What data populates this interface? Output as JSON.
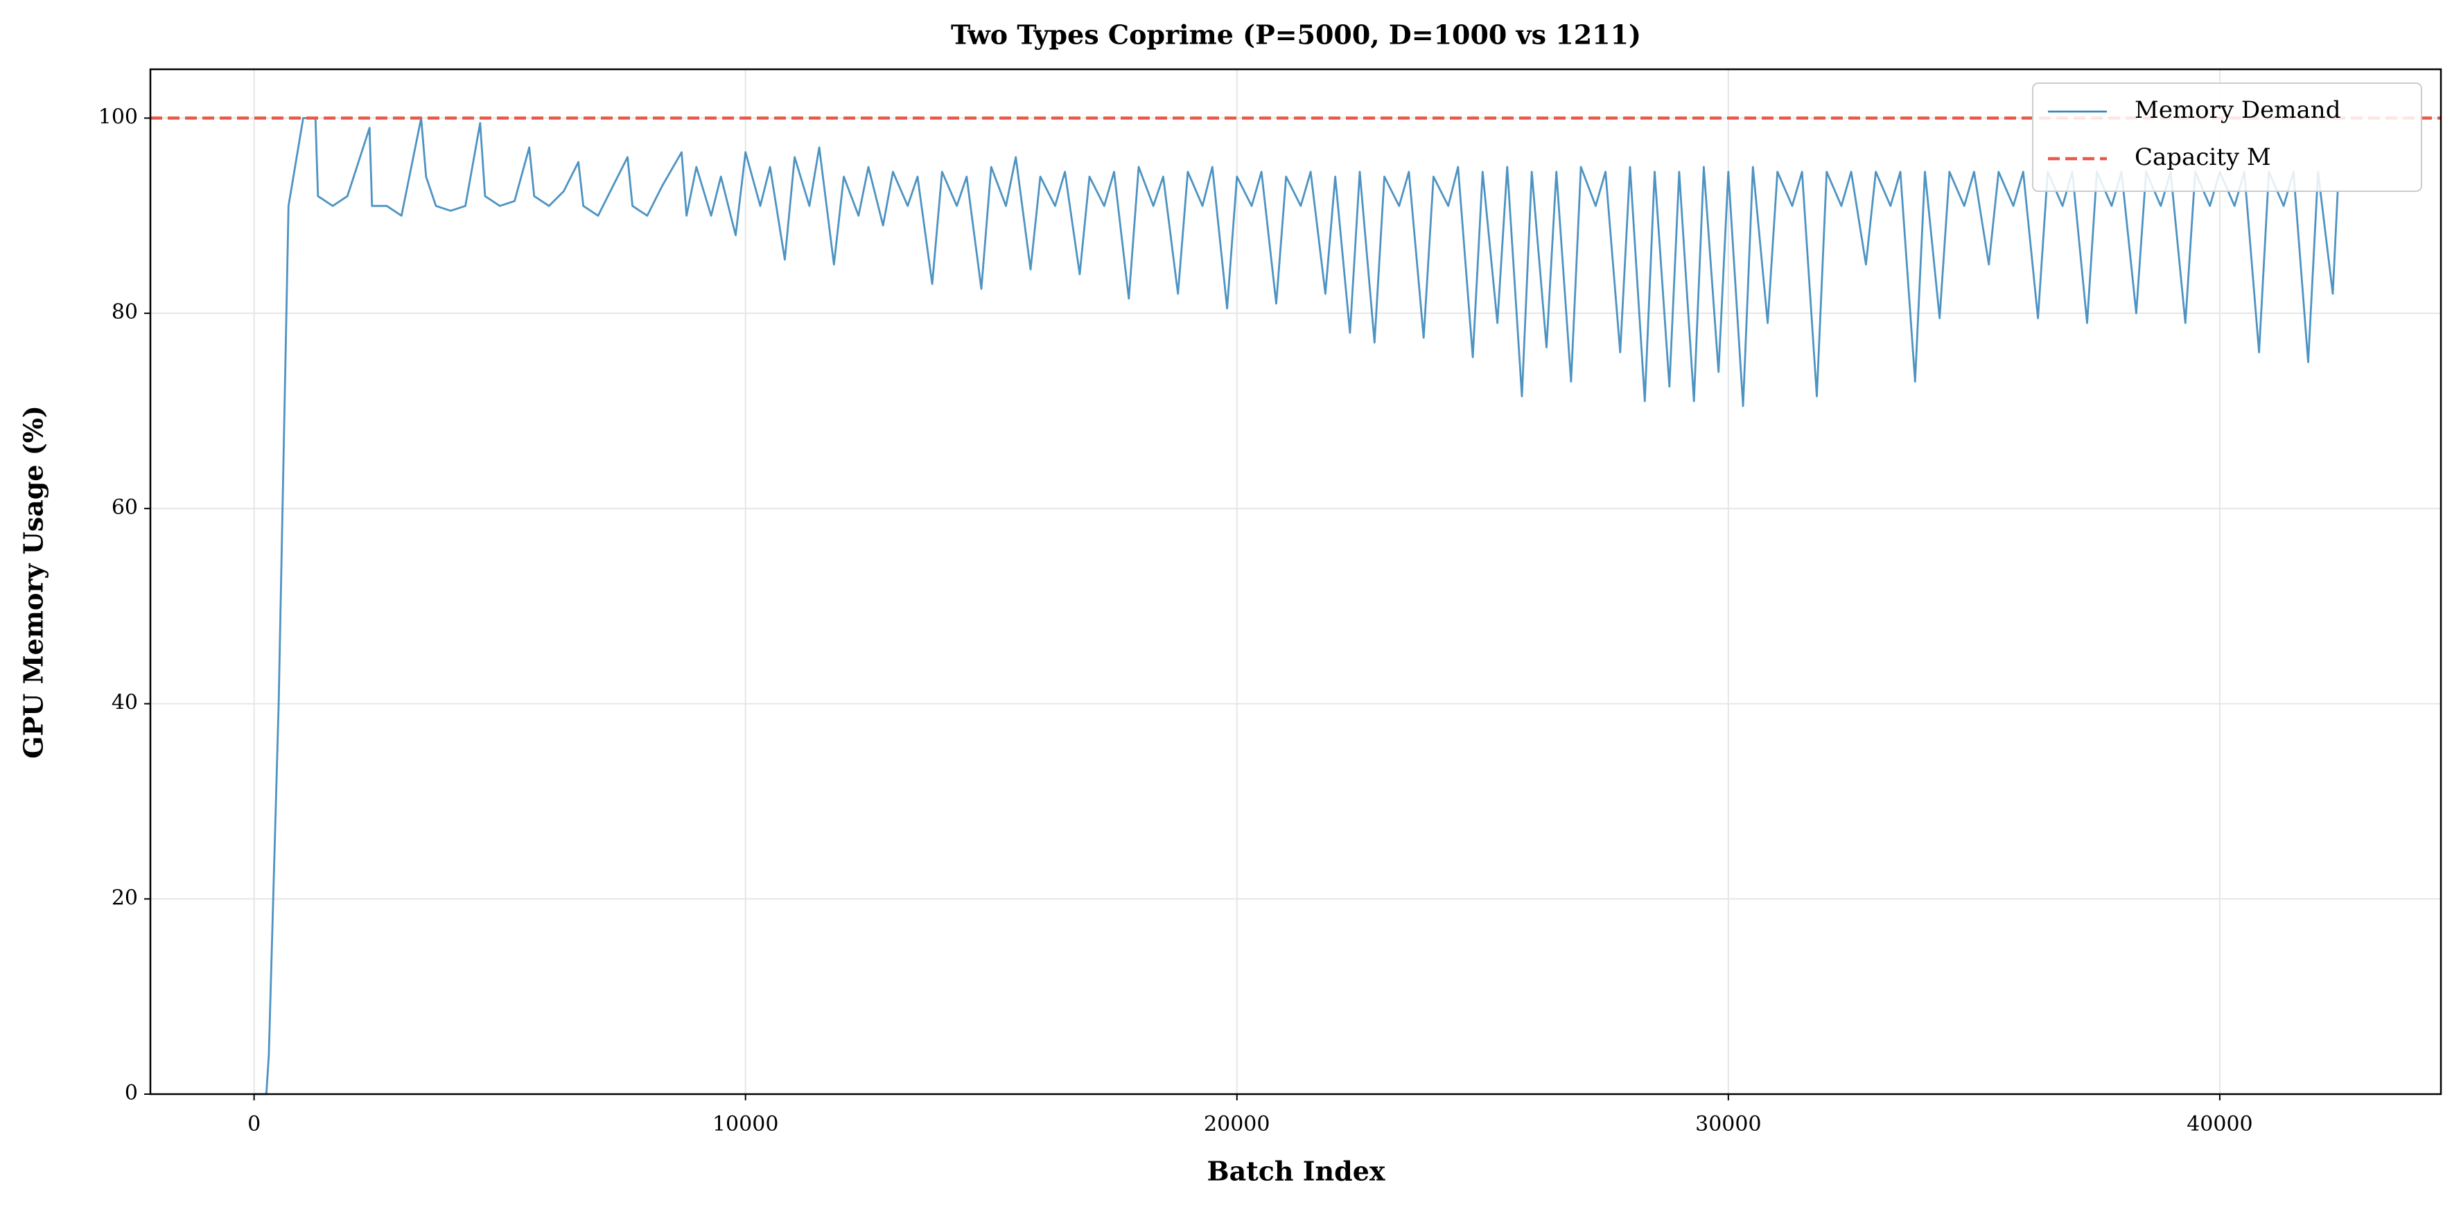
{
  "chart_data": {
    "type": "line",
    "title": "Two Types Coprime (P=5000, D=1000 vs 1211)",
    "xlabel": "Batch Index",
    "ylabel": "GPU Memory Usage (%)",
    "x": [
      0,
      250,
      300,
      500,
      700,
      1000,
      1250,
      1300,
      1600,
      1900,
      2350,
      2400,
      2700,
      3000,
      3400,
      3500,
      3700,
      4000,
      4300,
      4600,
      4700,
      5000,
      5300,
      5600,
      5700,
      6000,
      6300,
      6600,
      6700,
      7000,
      7300,
      7600,
      7700,
      8000,
      8300,
      8700,
      8800,
      9000,
      9300,
      9500,
      9800,
      10000,
      10300,
      10500,
      10800,
      11000,
      11300,
      11500,
      11800,
      12000,
      12300,
      12500,
      12800,
      13000,
      13300,
      13500,
      13800,
      14000,
      14300,
      14500,
      14800,
      15000,
      15300,
      15500,
      15800,
      16000,
      16300,
      16500,
      16800,
      17000,
      17300,
      17500,
      17800,
      18000,
      18300,
      18500,
      18800,
      19000,
      19300,
      19500,
      19800,
      20000,
      20300,
      20500,
      20800,
      21000,
      21300,
      21500,
      21800,
      22000,
      22300,
      22500,
      22800,
      23000,
      23300,
      23500,
      23800,
      24000,
      24300,
      24500,
      24800,
      25000,
      25300,
      25500,
      25800,
      26000,
      26300,
      26500,
      26800,
      27000,
      27300,
      27500,
      27800,
      28000,
      28300,
      28500,
      28800,
      29000,
      29300,
      29500,
      29800,
      30000,
      30300,
      30500,
      30800,
      31000,
      31300,
      31500,
      31800,
      32000,
      32300,
      32500,
      32800,
      33000,
      33300,
      33500,
      33800,
      34000,
      34300,
      34500,
      34800,
      35000,
      35300,
      35500,
      35800,
      36000,
      36300,
      36500,
      36800,
      37000,
      37300,
      37500,
      37800,
      38000,
      38300,
      38500,
      38800,
      39000,
      39300,
      39500,
      39800,
      40000,
      40300,
      40500,
      40800,
      41000,
      41300,
      41500,
      41800,
      42000,
      42300,
      42400
    ],
    "series": [
      {
        "name": "Memory Demand",
        "color": "#3a87bb",
        "values": [
          0,
          0,
          4,
          40,
          91,
          100,
          100,
          92,
          91,
          92,
          99,
          91,
          91,
          90,
          100,
          94,
          91,
          90.5,
          91,
          99.5,
          92,
          91,
          91.5,
          97,
          92,
          91,
          92.5,
          95.5,
          91,
          90,
          93,
          96,
          91,
          90,
          93,
          96.5,
          90,
          95,
          90,
          94,
          88,
          96.5,
          91,
          95,
          85.5,
          96,
          91,
          97,
          85,
          94,
          90,
          95,
          89,
          94.5,
          91,
          94,
          83,
          94.5,
          91,
          94,
          82.5,
          95,
          91,
          96,
          84.5,
          94,
          91,
          94.5,
          84,
          94,
          91,
          94.5,
          81.5,
          95,
          91,
          94,
          82,
          94.5,
          91,
          95,
          80.5,
          94,
          91,
          94.5,
          81,
          94,
          91,
          94.5,
          82,
          94,
          78,
          94.5,
          77,
          94,
          91,
          94.5,
          77.5,
          94,
          91,
          95,
          75.5,
          94.5,
          79,
          95,
          71.5,
          94.5,
          76.5,
          94.5,
          73,
          95,
          91,
          94.5,
          76,
          95,
          71,
          94.5,
          72.5,
          94.5,
          71,
          95,
          74,
          94.5,
          70.5,
          95,
          79,
          94.5,
          91,
          94.5,
          71.5,
          94.5,
          91,
          94.5,
          85,
          94.5,
          91,
          94.5,
          73,
          94.5,
          79.5,
          94.5,
          91,
          94.5,
          85,
          94.5,
          91,
          94.5,
          79.5,
          94.5,
          91,
          94.5,
          79,
          94.5,
          91,
          94.5,
          80,
          94.5,
          91,
          94.5,
          79,
          94.5,
          91,
          94.5,
          91,
          94.5,
          76,
          94.5,
          91,
          94.5,
          75,
          94.5,
          82,
          92.5
        ]
      }
    ],
    "hlines": [
      {
        "name": "Capacity M",
        "value": 100,
        "color": "#e8594a"
      }
    ],
    "xlim": [
      -2110,
      44500
    ],
    "ylim": [
      0,
      105
    ],
    "xticks": [
      0,
      10000,
      20000,
      30000,
      40000
    ],
    "yticks": [
      0,
      20,
      40,
      60,
      80,
      100
    ],
    "grid": true,
    "legend": "upper right"
  }
}
